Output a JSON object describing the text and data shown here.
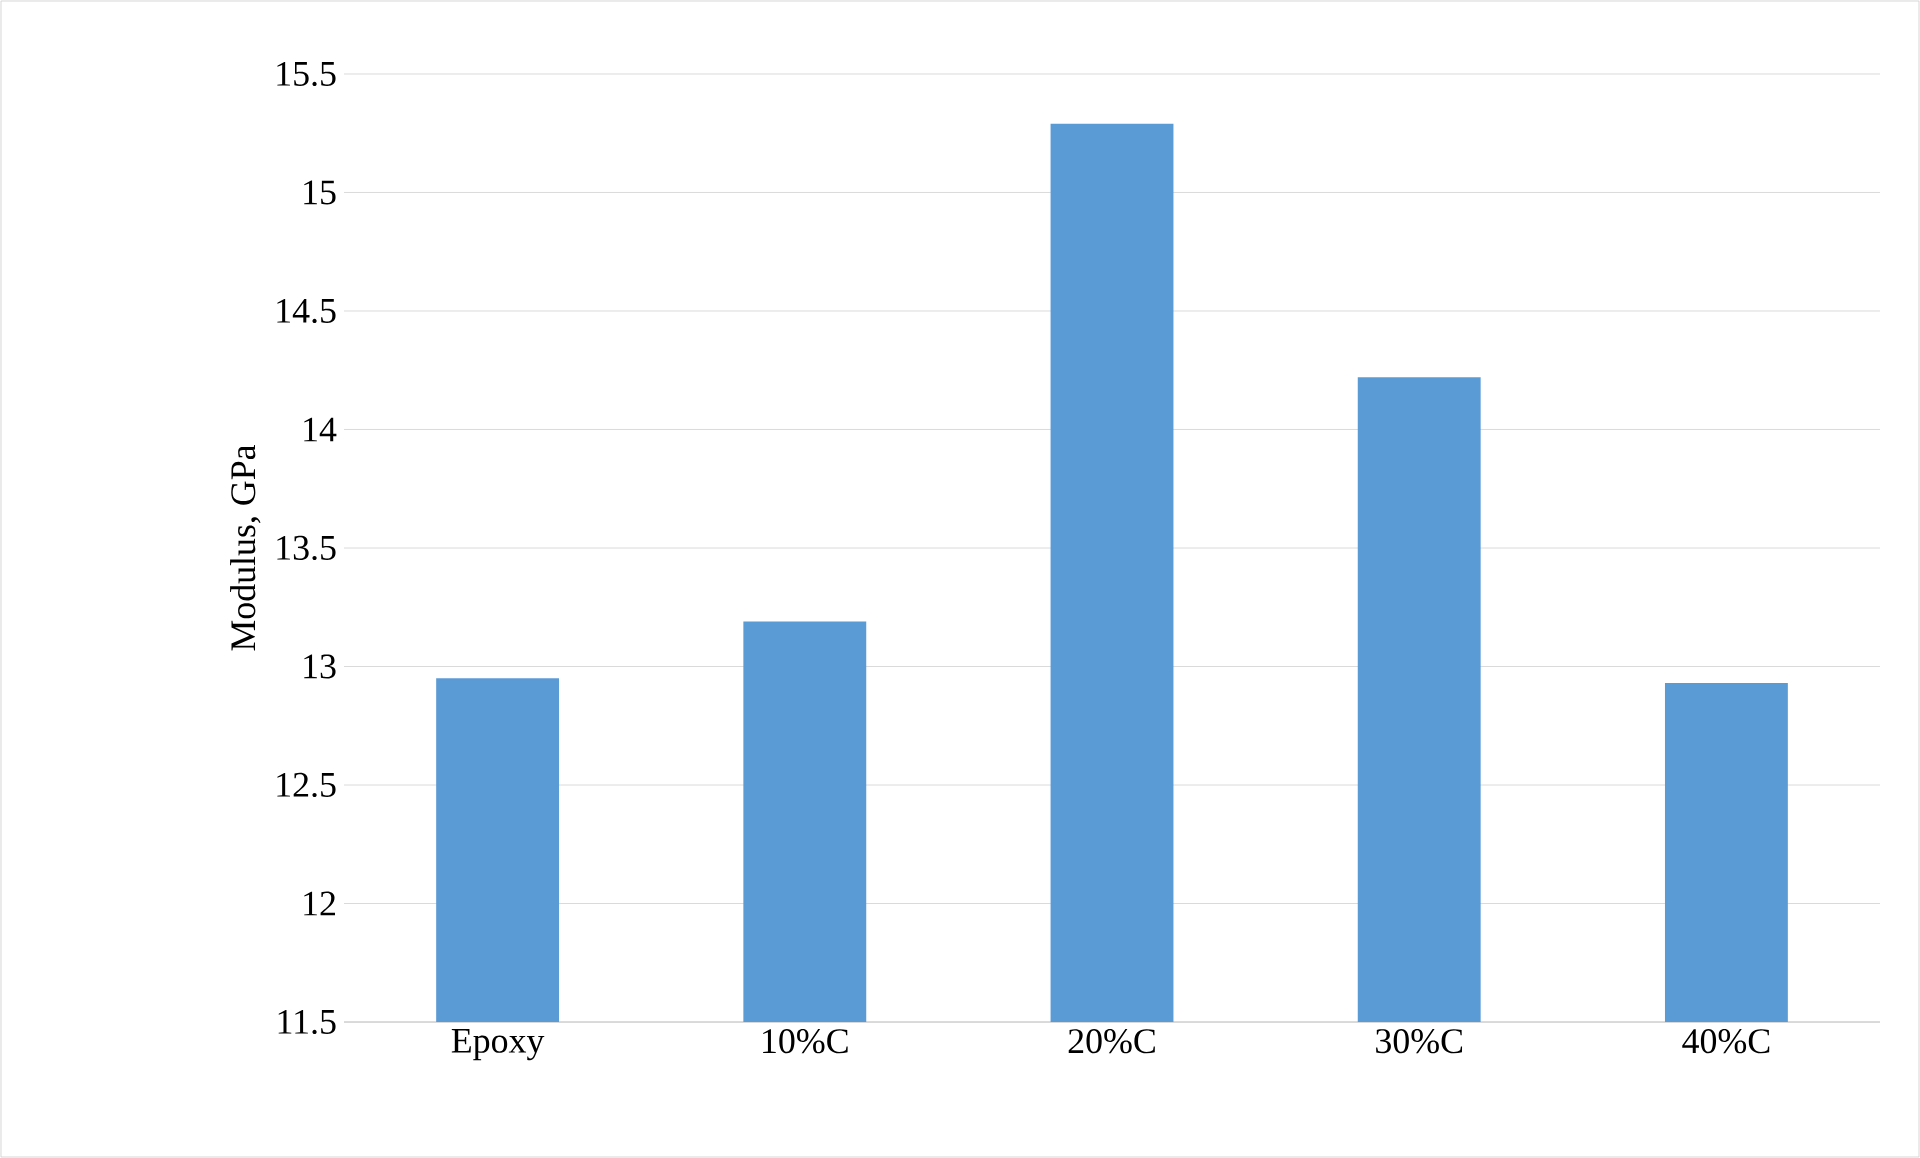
{
  "chart_data": {
    "type": "bar",
    "ylabel": "Modulus, GPa",
    "categories": [
      "Epoxy",
      "10%C",
      "20%C",
      "30%C",
      "40%C"
    ],
    "values": [
      12.95,
      13.19,
      15.29,
      14.22,
      12.93
    ],
    "color": "#5b9bd5",
    "ylim": [
      11.5,
      15.5
    ],
    "yticks": [
      11.5,
      12,
      12.5,
      13,
      13.5,
      14,
      14.5,
      15,
      15.5
    ],
    "grid": "y"
  }
}
